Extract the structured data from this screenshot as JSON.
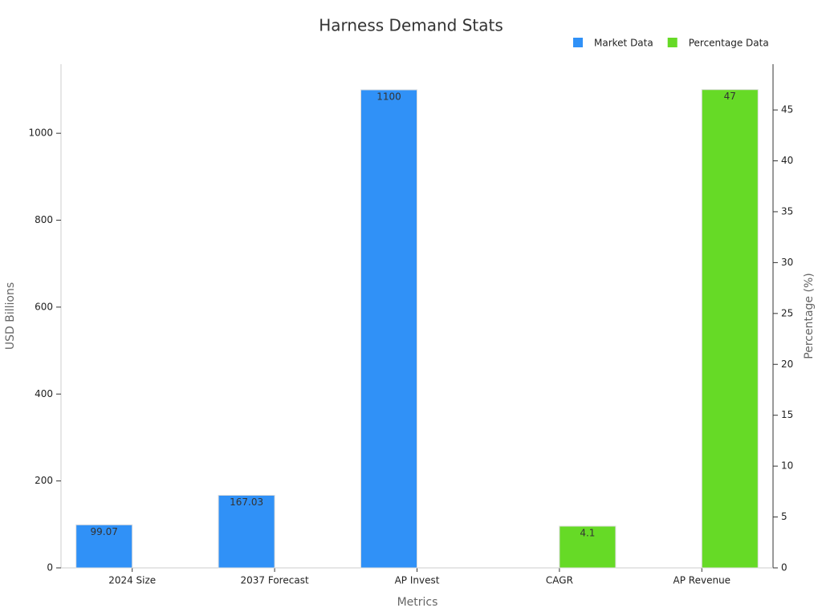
{
  "chart_data": {
    "type": "bar",
    "title": "Harness Demand Stats",
    "x_label": "Metrics",
    "y_label": "USD Billions",
    "y2_label": "Percentage (%)",
    "categories": [
      "2024 Size",
      "2037 Forecast",
      "AP Invest",
      "CAGR",
      "AP Revenue"
    ],
    "series": [
      {
        "name": "Market Data",
        "color": "#3091f7",
        "values": [
          99.07,
          167.03,
          1100,
          null,
          null
        ]
      },
      {
        "name": "Percentage Data",
        "color": "#66da26",
        "axis": "y2",
        "values": [
          null,
          null,
          null,
          4.1,
          47
        ]
      }
    ],
    "ylim": [
      0,
      1159
    ],
    "yticks": [
      0,
      200,
      400,
      600,
      800,
      1000
    ],
    "y2lim": [
      0,
      49.5
    ],
    "y2ticks": [
      0,
      5,
      10,
      15,
      20,
      25,
      30,
      35,
      40,
      45
    ],
    "grid": false,
    "legend": "top-right"
  }
}
